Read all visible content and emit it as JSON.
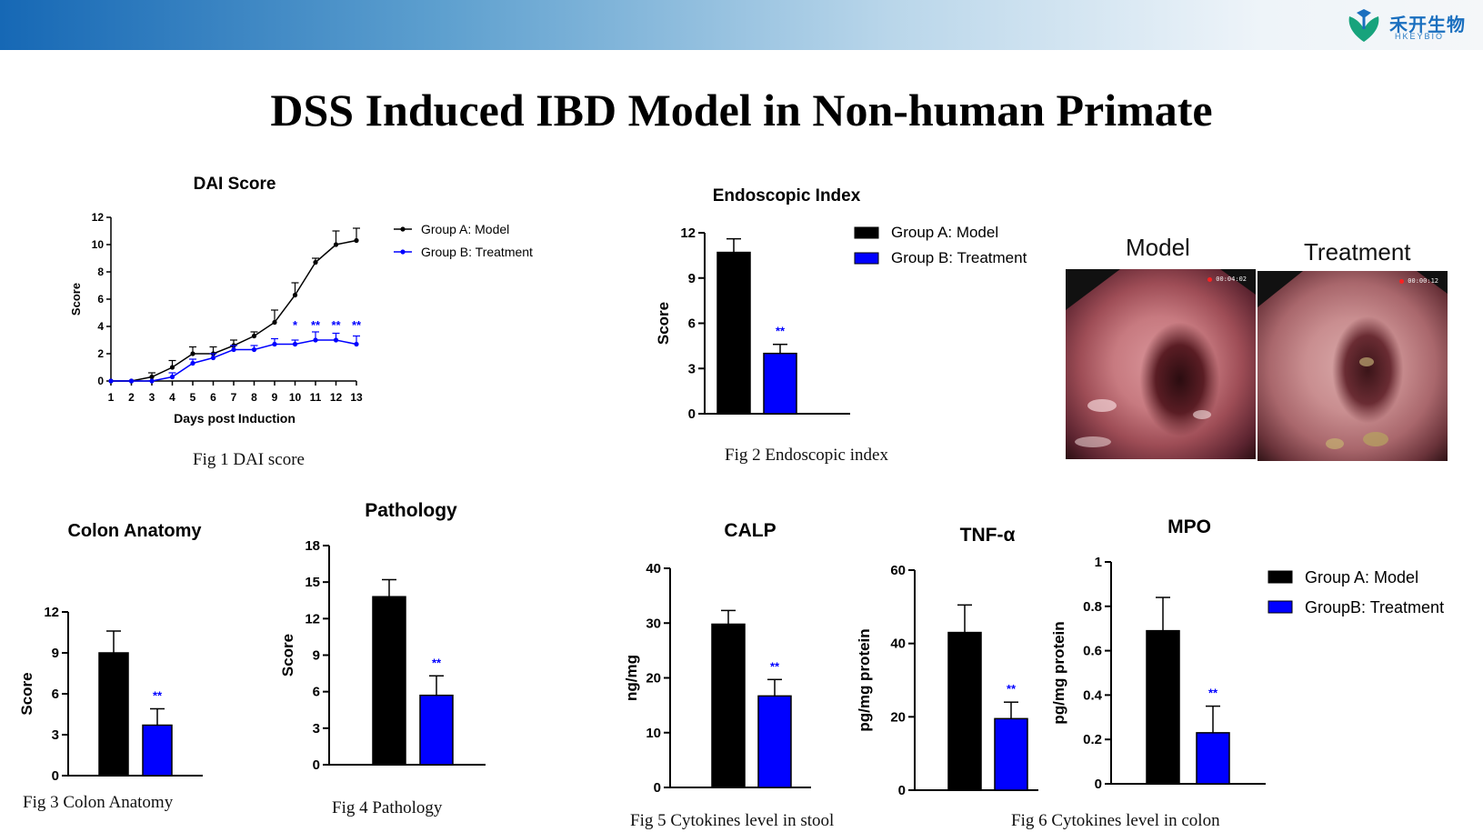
{
  "title": "DSS Induced IBD Model in Non-human Primate",
  "logo": {
    "cn": "禾开生物",
    "en": "HKEYBIO"
  },
  "colors": {
    "model": "#000000",
    "treatment": "#0000ff",
    "banner_start": "#1668b5"
  },
  "captions": {
    "fig1": "Fig 1 DAI score",
    "fig2": "Fig 2 Endoscopic index",
    "fig3": "Fig 3 Colon Anatomy",
    "fig4": "Fig 4 Pathology",
    "fig5": "Fig 5 Cytokines level in stool",
    "fig6": "Fig 6 Cytokines level in colon"
  },
  "photos": {
    "model_label": "Model",
    "treatment_label": "Treatment",
    "model_stamp": "00:04:02",
    "treatment_stamp": "00:00:12"
  },
  "mpo_legend": [
    "Group A: Model",
    "GroupB: Treatment"
  ],
  "chart_data": [
    {
      "id": "dai",
      "type": "line",
      "title": "DAI Score",
      "xlabel": "Days post Induction",
      "ylabel": "Score",
      "x": [
        1,
        2,
        3,
        4,
        5,
        6,
        7,
        8,
        9,
        10,
        11,
        12,
        13
      ],
      "xlim": [
        1,
        13
      ],
      "ylim": [
        0,
        12
      ],
      "yticks": [
        0,
        2,
        4,
        6,
        8,
        10,
        12
      ],
      "legend": "right",
      "series": [
        {
          "name": "Group A: Model",
          "color": "#000000",
          "values": [
            0,
            0,
            0.3,
            1.0,
            2.0,
            2.0,
            2.6,
            3.3,
            4.3,
            6.3,
            8.7,
            10.0,
            10.3
          ],
          "errors": [
            0,
            0,
            0.3,
            0.5,
            0.5,
            0.5,
            0.4,
            0.3,
            0.9,
            0.9,
            0.3,
            1.0,
            0.9
          ]
        },
        {
          "name": "Group B: Treatment",
          "color": "#0000ff",
          "values": [
            0,
            0,
            0,
            0.3,
            1.3,
            1.7,
            2.3,
            2.3,
            2.7,
            2.7,
            3.0,
            3.0,
            2.7
          ],
          "errors": [
            0,
            0,
            0,
            0.3,
            0.3,
            0.3,
            0.3,
            0.3,
            0.4,
            0.3,
            0.6,
            0.5,
            0.6
          ]
        }
      ],
      "significance": [
        {
          "x": 10,
          "label": "*"
        },
        {
          "x": 11,
          "label": "**"
        },
        {
          "x": 12,
          "label": "**"
        },
        {
          "x": 13,
          "label": "**"
        }
      ]
    },
    {
      "id": "endo",
      "type": "bar",
      "title": "Endoscopic Index",
      "ylabel": "Score",
      "ylim": [
        0,
        12
      ],
      "yticks": [
        0,
        3,
        6,
        9,
        12
      ],
      "values": [
        10.7,
        4.0
      ],
      "errors": [
        0.9,
        0.6
      ],
      "sig": "**",
      "legend": [
        "Group A: Model",
        "Group B: Treatment"
      ]
    },
    {
      "id": "colon",
      "type": "bar",
      "title": "Colon Anatomy",
      "ylabel": "Score",
      "ylim": [
        0,
        12
      ],
      "yticks": [
        0,
        3,
        6,
        9,
        12
      ],
      "values": [
        9.0,
        3.7
      ],
      "errors": [
        1.6,
        1.2
      ],
      "sig": "**"
    },
    {
      "id": "path",
      "type": "bar",
      "title": "Pathology",
      "ylabel": "Score",
      "ylim": [
        0,
        18
      ],
      "yticks": [
        0,
        3,
        6,
        9,
        12,
        15,
        18
      ],
      "values": [
        13.8,
        5.7
      ],
      "errors": [
        1.4,
        1.6
      ],
      "sig": "**"
    },
    {
      "id": "calp",
      "type": "bar",
      "title": "CALP",
      "ylabel": "ng/mg",
      "ylim": [
        0,
        40
      ],
      "yticks": [
        0,
        10,
        20,
        30,
        40
      ],
      "values": [
        29.8,
        16.7
      ],
      "errors": [
        2.5,
        3.0
      ],
      "sig": "**"
    },
    {
      "id": "tnf",
      "type": "bar",
      "title": "TNF-α",
      "ylabel": "pg/mg protein",
      "ylim": [
        0,
        60
      ],
      "yticks": [
        0,
        20,
        40,
        60
      ],
      "values": [
        43.0,
        19.5
      ],
      "errors": [
        7.5,
        4.5
      ],
      "sig": "**"
    },
    {
      "id": "mpo",
      "type": "bar",
      "title": "MPO",
      "ylabel": "pg/mg protein",
      "ylim": [
        0,
        1.0
      ],
      "yticks": [
        0.0,
        0.2,
        0.4,
        0.6,
        0.8,
        1.0
      ],
      "values": [
        0.69,
        0.23
      ],
      "errors": [
        0.15,
        0.12
      ],
      "sig": "**"
    }
  ]
}
